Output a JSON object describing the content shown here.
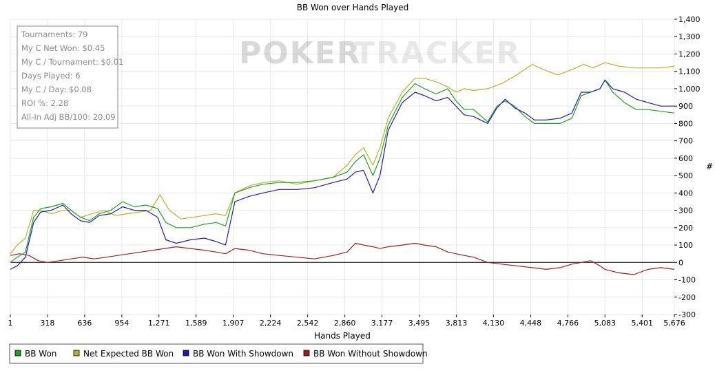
{
  "watermark": {
    "part1": "POKER",
    "part2": "TRACKER"
  },
  "stats": [
    "Tournaments: 79",
    "My C Net Won: $0.45",
    "My C / Tournament: $0.01",
    "Days Played: 6",
    "My C / Day: $0.08",
    "ROI %: 2.28",
    "All-In Adj BB/100: 20.09"
  ],
  "chart_data": {
    "type": "line",
    "title": "BB Won over Hands Played",
    "xlabel": "Hands Played",
    "ylabel": "#",
    "xlim": [
      1,
      5676
    ],
    "ylim": [
      -300,
      1400
    ],
    "grid": true,
    "legend_position": "bottom",
    "x_ticks": [
      {
        "v": 1,
        "label": "1"
      },
      {
        "v": 318,
        "label": "318"
      },
      {
        "v": 636,
        "label": "636"
      },
      {
        "v": 954,
        "label": "954"
      },
      {
        "v": 1271,
        "label": "1,271"
      },
      {
        "v": 1589,
        "label": "1,589"
      },
      {
        "v": 1907,
        "label": "1,907"
      },
      {
        "v": 2224,
        "label": "2,224"
      },
      {
        "v": 2542,
        "label": "2,542"
      },
      {
        "v": 2860,
        "label": "2,860"
      },
      {
        "v": 3177,
        "label": "3,177"
      },
      {
        "v": 3495,
        "label": "3,495"
      },
      {
        "v": 3813,
        "label": "3,813"
      },
      {
        "v": 4130,
        "label": "4,130"
      },
      {
        "v": 4448,
        "label": "4,448"
      },
      {
        "v": 4766,
        "label": "4,766"
      },
      {
        "v": 5083,
        "label": "5,083"
      },
      {
        "v": 5401,
        "label": "5,401"
      },
      {
        "v": 5676,
        "label": "5,676"
      }
    ],
    "y_ticks": [
      {
        "v": 1400,
        "label": "1,400"
      },
      {
        "v": 1300,
        "label": "1,300"
      },
      {
        "v": 1200,
        "label": "1,200"
      },
      {
        "v": 1100,
        "label": "1,100"
      },
      {
        "v": 1000,
        "label": "1,000"
      },
      {
        "v": 900,
        "label": "900"
      },
      {
        "v": 800,
        "label": "800"
      },
      {
        "v": 700,
        "label": "700"
      },
      {
        "v": 600,
        "label": "600"
      },
      {
        "v": 500,
        "label": "500"
      },
      {
        "v": 400,
        "label": "400"
      },
      {
        "v": 300,
        "label": "300"
      },
      {
        "v": 200,
        "label": "200"
      },
      {
        "v": 100,
        "label": "100"
      },
      {
        "v": 0,
        "label": "0"
      },
      {
        "v": -100,
        "label": "-100"
      },
      {
        "v": -200,
        "label": "-200"
      },
      {
        "v": -300,
        "label": "-300"
      }
    ],
    "series": [
      {
        "name": "BB Won",
        "color": "#22a022",
        "points": [
          [
            1,
            0
          ],
          [
            60,
            30
          ],
          [
            130,
            60
          ],
          [
            200,
            260
          ],
          [
            260,
            310
          ],
          [
            350,
            320
          ],
          [
            450,
            340
          ],
          [
            520,
            300
          ],
          [
            600,
            260
          ],
          [
            680,
            240
          ],
          [
            760,
            280
          ],
          [
            860,
            300
          ],
          [
            960,
            350
          ],
          [
            1060,
            320
          ],
          [
            1160,
            330
          ],
          [
            1260,
            310
          ],
          [
            1330,
            230
          ],
          [
            1420,
            200
          ],
          [
            1540,
            200
          ],
          [
            1660,
            220
          ],
          [
            1760,
            230
          ],
          [
            1840,
            210
          ],
          [
            1920,
            400
          ],
          [
            2040,
            430
          ],
          [
            2160,
            450
          ],
          [
            2300,
            460
          ],
          [
            2450,
            460
          ],
          [
            2600,
            470
          ],
          [
            2760,
            490
          ],
          [
            2880,
            520
          ],
          [
            2950,
            580
          ],
          [
            3020,
            620
          ],
          [
            3100,
            500
          ],
          [
            3160,
            600
          ],
          [
            3230,
            790
          ],
          [
            3350,
            950
          ],
          [
            3460,
            1030
          ],
          [
            3540,
            1000
          ],
          [
            3640,
            970
          ],
          [
            3740,
            1000
          ],
          [
            3810,
            930
          ],
          [
            3880,
            880
          ],
          [
            3960,
            880
          ],
          [
            4080,
            810
          ],
          [
            4160,
            900
          ],
          [
            4230,
            930
          ],
          [
            4310,
            900
          ],
          [
            4400,
            840
          ],
          [
            4480,
            800
          ],
          [
            4580,
            800
          ],
          [
            4700,
            800
          ],
          [
            4800,
            830
          ],
          [
            4880,
            960
          ],
          [
            4960,
            980
          ],
          [
            5040,
            1000
          ],
          [
            5083,
            1050
          ],
          [
            5150,
            980
          ],
          [
            5250,
            920
          ],
          [
            5350,
            880
          ],
          [
            5450,
            880
          ],
          [
            5560,
            870
          ],
          [
            5676,
            860
          ]
        ]
      },
      {
        "name": "Net Expected BB Won",
        "color": "#b5b52a",
        "points": [
          [
            1,
            50
          ],
          [
            60,
            100
          ],
          [
            130,
            140
          ],
          [
            200,
            300
          ],
          [
            260,
            300
          ],
          [
            350,
            280
          ],
          [
            450,
            300
          ],
          [
            520,
            300
          ],
          [
            600,
            260
          ],
          [
            700,
            280
          ],
          [
            800,
            300
          ],
          [
            900,
            270
          ],
          [
            1000,
            280
          ],
          [
            1100,
            290
          ],
          [
            1200,
            300
          ],
          [
            1280,
            390
          ],
          [
            1360,
            300
          ],
          [
            1460,
            250
          ],
          [
            1560,
            260
          ],
          [
            1660,
            270
          ],
          [
            1760,
            280
          ],
          [
            1840,
            270
          ],
          [
            1920,
            400
          ],
          [
            2040,
            440
          ],
          [
            2160,
            460
          ],
          [
            2300,
            470
          ],
          [
            2450,
            450
          ],
          [
            2600,
            470
          ],
          [
            2760,
            490
          ],
          [
            2880,
            560
          ],
          [
            2950,
            620
          ],
          [
            3020,
            660
          ],
          [
            3100,
            560
          ],
          [
            3160,
            660
          ],
          [
            3230,
            830
          ],
          [
            3350,
            980
          ],
          [
            3460,
            1060
          ],
          [
            3540,
            1060
          ],
          [
            3640,
            1040
          ],
          [
            3740,
            1010
          ],
          [
            3810,
            980
          ],
          [
            3880,
            1000
          ],
          [
            3960,
            990
          ],
          [
            4080,
            1000
          ],
          [
            4200,
            1030
          ],
          [
            4330,
            1080
          ],
          [
            4460,
            1140
          ],
          [
            4560,
            1110
          ],
          [
            4680,
            1080
          ],
          [
            4800,
            1110
          ],
          [
            4900,
            1140
          ],
          [
            4980,
            1120
          ],
          [
            5083,
            1150
          ],
          [
            5200,
            1130
          ],
          [
            5330,
            1120
          ],
          [
            5450,
            1120
          ],
          [
            5560,
            1120
          ],
          [
            5676,
            1130
          ]
        ]
      },
      {
        "name": "BB Won With Showdown",
        "color": "#1c1cb4",
        "points": [
          [
            1,
            -40
          ],
          [
            60,
            -20
          ],
          [
            130,
            30
          ],
          [
            200,
            230
          ],
          [
            260,
            290
          ],
          [
            350,
            300
          ],
          [
            450,
            330
          ],
          [
            520,
            280
          ],
          [
            600,
            240
          ],
          [
            680,
            230
          ],
          [
            760,
            270
          ],
          [
            860,
            280
          ],
          [
            960,
            320
          ],
          [
            1060,
            300
          ],
          [
            1160,
            300
          ],
          [
            1260,
            260
          ],
          [
            1330,
            130
          ],
          [
            1420,
            110
          ],
          [
            1540,
            130
          ],
          [
            1660,
            140
          ],
          [
            1760,
            120
          ],
          [
            1840,
            100
          ],
          [
            1920,
            350
          ],
          [
            2040,
            380
          ],
          [
            2160,
            400
          ],
          [
            2300,
            420
          ],
          [
            2450,
            420
          ],
          [
            2600,
            430
          ],
          [
            2760,
            460
          ],
          [
            2880,
            480
          ],
          [
            2950,
            520
          ],
          [
            3020,
            530
          ],
          [
            3100,
            400
          ],
          [
            3160,
            500
          ],
          [
            3230,
            760
          ],
          [
            3350,
            920
          ],
          [
            3460,
            980
          ],
          [
            3540,
            960
          ],
          [
            3640,
            930
          ],
          [
            3740,
            950
          ],
          [
            3810,
            900
          ],
          [
            3880,
            850
          ],
          [
            3960,
            840
          ],
          [
            4080,
            800
          ],
          [
            4160,
            890
          ],
          [
            4230,
            940
          ],
          [
            4310,
            890
          ],
          [
            4400,
            860
          ],
          [
            4480,
            820
          ],
          [
            4580,
            820
          ],
          [
            4700,
            830
          ],
          [
            4800,
            860
          ],
          [
            4880,
            980
          ],
          [
            4960,
            980
          ],
          [
            5040,
            1000
          ],
          [
            5083,
            1050
          ],
          [
            5150,
            1000
          ],
          [
            5250,
            980
          ],
          [
            5350,
            940
          ],
          [
            5450,
            920
          ],
          [
            5560,
            900
          ],
          [
            5676,
            900
          ]
        ]
      },
      {
        "name": "BB Won Without Showdown",
        "color": "#a51c1c",
        "points": [
          [
            1,
            40
          ],
          [
            80,
            50
          ],
          [
            160,
            40
          ],
          [
            240,
            10
          ],
          [
            320,
            0
          ],
          [
            420,
            10
          ],
          [
            520,
            20
          ],
          [
            620,
            30
          ],
          [
            720,
            20
          ],
          [
            820,
            30
          ],
          [
            920,
            40
          ],
          [
            1020,
            50
          ],
          [
            1120,
            60
          ],
          [
            1220,
            70
          ],
          [
            1320,
            80
          ],
          [
            1420,
            90
          ],
          [
            1540,
            80
          ],
          [
            1660,
            70
          ],
          [
            1760,
            60
          ],
          [
            1840,
            50
          ],
          [
            1920,
            80
          ],
          [
            2040,
            70
          ],
          [
            2160,
            50
          ],
          [
            2300,
            40
          ],
          [
            2450,
            30
          ],
          [
            2600,
            20
          ],
          [
            2760,
            40
          ],
          [
            2880,
            60
          ],
          [
            2950,
            110
          ],
          [
            3020,
            100
          ],
          [
            3100,
            90
          ],
          [
            3160,
            80
          ],
          [
            3230,
            90
          ],
          [
            3350,
            100
          ],
          [
            3460,
            110
          ],
          [
            3540,
            100
          ],
          [
            3640,
            90
          ],
          [
            3740,
            60
          ],
          [
            3810,
            50
          ],
          [
            3880,
            40
          ],
          [
            3960,
            30
          ],
          [
            4080,
            0
          ],
          [
            4200,
            -10
          ],
          [
            4330,
            -20
          ],
          [
            4460,
            -30
          ],
          [
            4580,
            -40
          ],
          [
            4700,
            -30
          ],
          [
            4800,
            -10
          ],
          [
            4880,
            0
          ],
          [
            4960,
            10
          ],
          [
            5040,
            -20
          ],
          [
            5083,
            -40
          ],
          [
            5200,
            -60
          ],
          [
            5330,
            -70
          ],
          [
            5450,
            -40
          ],
          [
            5560,
            -30
          ],
          [
            5676,
            -40
          ]
        ]
      }
    ]
  }
}
